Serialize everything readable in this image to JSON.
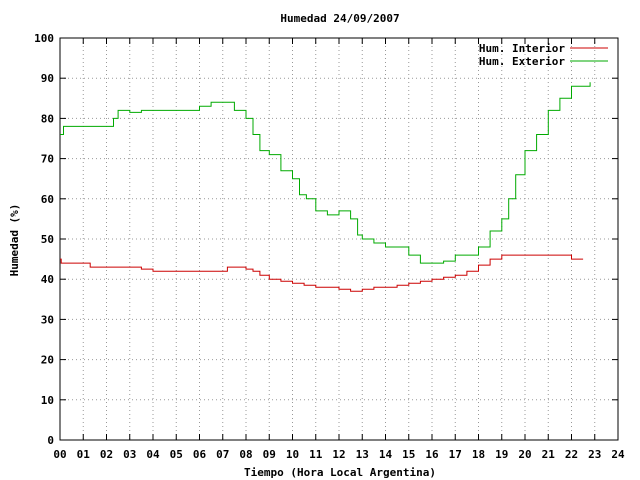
{
  "chart_data": {
    "type": "line",
    "title": "Humedad 24/09/2007",
    "xlabel": "Tiempo (Hora Local Argentina)",
    "ylabel": "Humedad (%)",
    "xlim": [
      0,
      24
    ],
    "ylim": [
      0,
      100
    ],
    "x_ticks": [
      "00",
      "01",
      "02",
      "03",
      "04",
      "05",
      "06",
      "07",
      "08",
      "09",
      "10",
      "11",
      "12",
      "13",
      "14",
      "15",
      "16",
      "17",
      "18",
      "19",
      "20",
      "21",
      "22",
      "23",
      "24"
    ],
    "y_ticks": [
      0,
      10,
      20,
      30,
      40,
      50,
      60,
      70,
      80,
      90,
      100
    ],
    "grid": true,
    "legend_position": "top-right",
    "series": [
      {
        "name": "Hum. Interior",
        "color": "#cc0000",
        "points": [
          [
            0.0,
            45
          ],
          [
            0.05,
            44
          ],
          [
            0.5,
            44
          ],
          [
            1.0,
            44
          ],
          [
            1.3,
            43
          ],
          [
            2.0,
            43
          ],
          [
            2.5,
            43
          ],
          [
            3.0,
            43
          ],
          [
            3.5,
            42.5
          ],
          [
            4.0,
            42
          ],
          [
            5.0,
            42
          ],
          [
            6.0,
            42
          ],
          [
            7.0,
            42
          ],
          [
            7.2,
            43
          ],
          [
            7.5,
            43
          ],
          [
            8.0,
            42.5
          ],
          [
            8.3,
            42
          ],
          [
            8.6,
            41
          ],
          [
            9.0,
            40
          ],
          [
            9.5,
            39.5
          ],
          [
            10.0,
            39
          ],
          [
            10.5,
            38.5
          ],
          [
            11.0,
            38
          ],
          [
            11.5,
            38
          ],
          [
            12.0,
            37.5
          ],
          [
            12.5,
            37
          ],
          [
            13.0,
            37.5
          ],
          [
            13.5,
            38
          ],
          [
            14.0,
            38
          ],
          [
            14.5,
            38.5
          ],
          [
            15.0,
            39
          ],
          [
            15.5,
            39.5
          ],
          [
            16.0,
            40
          ],
          [
            16.5,
            40.5
          ],
          [
            17.0,
            41
          ],
          [
            17.5,
            42
          ],
          [
            18.0,
            43.5
          ],
          [
            18.5,
            45
          ],
          [
            19.0,
            46
          ],
          [
            20.0,
            46
          ],
          [
            21.0,
            46
          ],
          [
            21.5,
            46
          ],
          [
            22.0,
            45
          ],
          [
            22.5,
            45
          ]
        ]
      },
      {
        "name": "Hum. Exterior",
        "color": "#00aa00",
        "points": [
          [
            0.0,
            76
          ],
          [
            0.15,
            78
          ],
          [
            0.5,
            78
          ],
          [
            1.0,
            78
          ],
          [
            2.0,
            78
          ],
          [
            2.3,
            80
          ],
          [
            2.5,
            82
          ],
          [
            3.0,
            81.5
          ],
          [
            3.5,
            82
          ],
          [
            4.0,
            82
          ],
          [
            5.0,
            82
          ],
          [
            5.5,
            82
          ],
          [
            6.0,
            83
          ],
          [
            6.5,
            84
          ],
          [
            7.0,
            84
          ],
          [
            7.5,
            82
          ],
          [
            8.0,
            80
          ],
          [
            8.3,
            76
          ],
          [
            8.6,
            72
          ],
          [
            9.0,
            71
          ],
          [
            9.5,
            67
          ],
          [
            10.0,
            65
          ],
          [
            10.3,
            61
          ],
          [
            10.6,
            60
          ],
          [
            11.0,
            57
          ],
          [
            11.5,
            56
          ],
          [
            12.0,
            57
          ],
          [
            12.5,
            55
          ],
          [
            12.8,
            51
          ],
          [
            13.0,
            50
          ],
          [
            13.5,
            49
          ],
          [
            14.0,
            48
          ],
          [
            14.5,
            48
          ],
          [
            15.0,
            46
          ],
          [
            15.5,
            44
          ],
          [
            16.0,
            44
          ],
          [
            16.5,
            44.5
          ],
          [
            17.0,
            46
          ],
          [
            17.5,
            46
          ],
          [
            18.0,
            48
          ],
          [
            18.5,
            52
          ],
          [
            19.0,
            55
          ],
          [
            19.3,
            60
          ],
          [
            19.6,
            66
          ],
          [
            20.0,
            72
          ],
          [
            20.5,
            76
          ],
          [
            21.0,
            82
          ],
          [
            21.5,
            85
          ],
          [
            22.0,
            88
          ],
          [
            22.5,
            88
          ],
          [
            22.8,
            89
          ]
        ]
      }
    ]
  }
}
